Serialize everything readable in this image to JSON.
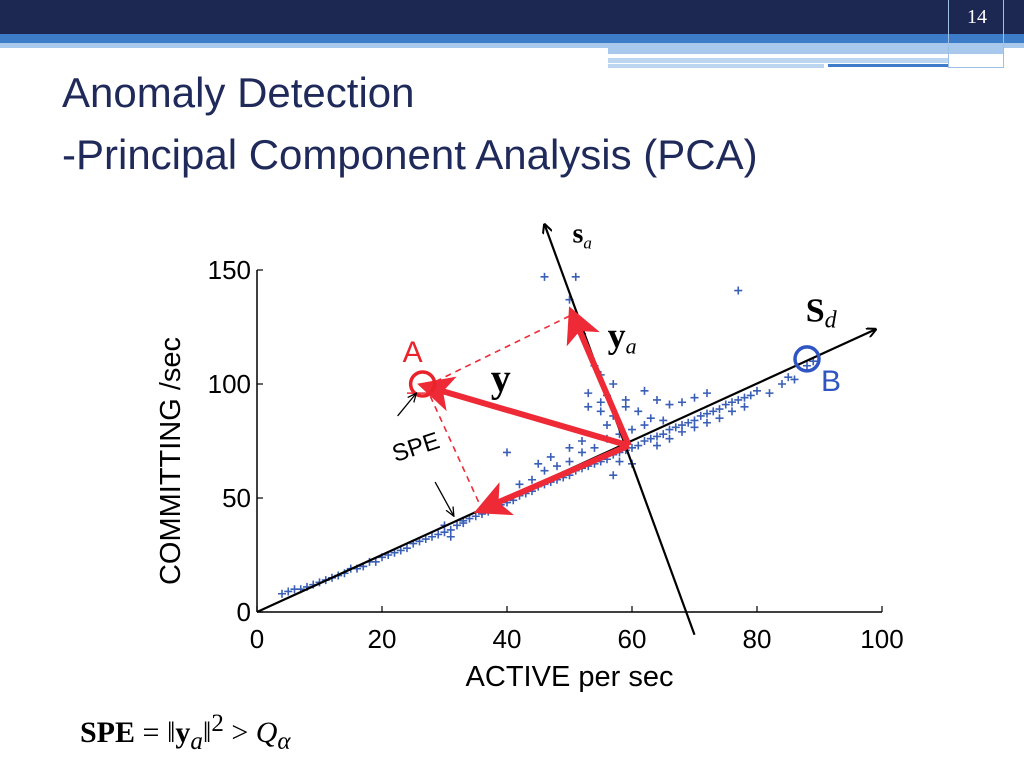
{
  "slide": {
    "number": "14",
    "title_line1": "Anomaly Detection",
    "title_line2": "-Principal Component Analysis (PCA)",
    "formula_lhs": "SPE",
    "formula_eq": " = ‖",
    "formula_y": "y",
    "formula_sub_a": "a",
    "formula_rhs": "‖",
    "formula_exp": "2",
    "formula_gt": " > ",
    "formula_q": "Q",
    "formula_sub_alpha": "α"
  },
  "chart_data": {
    "type": "scatter",
    "xlabel": "ACTIVE per sec",
    "ylabel": "COMMITTING /sec",
    "xlim": [
      0,
      100
    ],
    "ylim": [
      0,
      150
    ],
    "xticks": [
      0,
      20,
      40,
      60,
      80,
      100
    ],
    "yticks": [
      0,
      50,
      100,
      150
    ],
    "x_tick_labels": [
      "0",
      "20",
      "40",
      "60",
      "80",
      "100"
    ],
    "y_tick_labels": [
      "0",
      "50",
      "100",
      "150"
    ],
    "grid": false,
    "points": [
      [
        4,
        8
      ],
      [
        5,
        9
      ],
      [
        6,
        10
      ],
      [
        7,
        10
      ],
      [
        8,
        11
      ],
      [
        9,
        12
      ],
      [
        10,
        13
      ],
      [
        11,
        14
      ],
      [
        12,
        15
      ],
      [
        13,
        16
      ],
      [
        14,
        17
      ],
      [
        15,
        19
      ],
      [
        16,
        19
      ],
      [
        17,
        20
      ],
      [
        18,
        22
      ],
      [
        19,
        22
      ],
      [
        20,
        24
      ],
      [
        21,
        25
      ],
      [
        22,
        26
      ],
      [
        23,
        27
      ],
      [
        24,
        28
      ],
      [
        25,
        30
      ],
      [
        26,
        31
      ],
      [
        27,
        32
      ],
      [
        28,
        33
      ],
      [
        29,
        34
      ],
      [
        30,
        35
      ],
      [
        31,
        36
      ],
      [
        32,
        38
      ],
      [
        33,
        39
      ],
      [
        34,
        41
      ],
      [
        35,
        42
      ],
      [
        36,
        43
      ],
      [
        37,
        44
      ],
      [
        38,
        46
      ],
      [
        39,
        47
      ],
      [
        40,
        48
      ],
      [
        41,
        49
      ],
      [
        42,
        51
      ],
      [
        43,
        52
      ],
      [
        44,
        53
      ],
      [
        45,
        55
      ],
      [
        46,
        56
      ],
      [
        47,
        57
      ],
      [
        48,
        58
      ],
      [
        49,
        59
      ],
      [
        50,
        60
      ],
      [
        51,
        62
      ],
      [
        52,
        63
      ],
      [
        53,
        64
      ],
      [
        54,
        65
      ],
      [
        55,
        66
      ],
      [
        56,
        67
      ],
      [
        57,
        69
      ],
      [
        58,
        70
      ],
      [
        59,
        71
      ],
      [
        60,
        72
      ],
      [
        61,
        73
      ],
      [
        62,
        75
      ],
      [
        63,
        76
      ],
      [
        64,
        77
      ],
      [
        65,
        78
      ],
      [
        66,
        80
      ],
      [
        67,
        81
      ],
      [
        68,
        82
      ],
      [
        69,
        83
      ],
      [
        70,
        84
      ],
      [
        71,
        86
      ],
      [
        72,
        87
      ],
      [
        73,
        88
      ],
      [
        74,
        89
      ],
      [
        75,
        91
      ],
      [
        76,
        92
      ],
      [
        77,
        93
      ],
      [
        78,
        94
      ],
      [
        79,
        95
      ],
      [
        80,
        97
      ],
      [
        44,
        58
      ],
      [
        46,
        62
      ],
      [
        48,
        64
      ],
      [
        50,
        66
      ],
      [
        52,
        70
      ],
      [
        54,
        72
      ],
      [
        56,
        76
      ],
      [
        58,
        78
      ],
      [
        60,
        80
      ],
      [
        62,
        82
      ],
      [
        55,
        88
      ],
      [
        57,
        86
      ],
      [
        53,
        90
      ],
      [
        59,
        90
      ],
      [
        61,
        88
      ],
      [
        63,
        85
      ],
      [
        65,
        84
      ],
      [
        50,
        72
      ],
      [
        52,
        75
      ],
      [
        47,
        68
      ],
      [
        45,
        65
      ],
      [
        56,
        82
      ],
      [
        40,
        70
      ],
      [
        42,
        56
      ],
      [
        36,
        44
      ],
      [
        33,
        40
      ],
      [
        31,
        33
      ],
      [
        30,
        38
      ],
      [
        57,
        60
      ],
      [
        58,
        66
      ],
      [
        60,
        65
      ],
      [
        64,
        73
      ],
      [
        66,
        76
      ],
      [
        68,
        79
      ],
      [
        70,
        81
      ],
      [
        72,
        83
      ],
      [
        74,
        85
      ],
      [
        76,
        88
      ],
      [
        78,
        90
      ],
      [
        82,
        96
      ],
      [
        84,
        100
      ],
      [
        86,
        102
      ],
      [
        88,
        108
      ],
      [
        89,
        110
      ],
      [
        85,
        103
      ],
      [
        46,
        147
      ],
      [
        51,
        147
      ],
      [
        77,
        141
      ],
      [
        50,
        137
      ],
      [
        52,
        122
      ],
      [
        54,
        108
      ],
      [
        55,
        104
      ],
      [
        57,
        100
      ],
      [
        53,
        96
      ],
      [
        55,
        92
      ],
      [
        56,
        95
      ],
      [
        59,
        93
      ],
      [
        62,
        97
      ],
      [
        64,
        93
      ],
      [
        66,
        91
      ],
      [
        68,
        92
      ],
      [
        70,
        94
      ],
      [
        72,
        96
      ]
    ],
    "axes": {
      "s_a": {
        "label": "s",
        "sub": "a",
        "from": [
          70,
          -10
        ],
        "to": [
          46,
          170
        ]
      },
      "s_d": {
        "label": "S",
        "sub": "d",
        "from": [
          0,
          0
        ],
        "to": [
          99,
          124
        ]
      }
    },
    "center": [
      59.5,
      73
    ],
    "vectors": {
      "y": {
        "label": "y",
        "to": [
          27,
          99
        ]
      },
      "y_a": {
        "label": "y",
        "sub": "a",
        "to": [
          50.5,
          130.5
        ]
      },
      "projection": {
        "to": [
          36,
          45
        ]
      }
    },
    "points_labeled": {
      "A": {
        "label": "A",
        "x": 26.5,
        "y": 100,
        "color": "#e8232a"
      },
      "B": {
        "label": "B",
        "x": 88,
        "y": 111,
        "color": "#2f55c4"
      }
    },
    "spe_label": "SPE",
    "colors": {
      "points": "#3a5fb6",
      "vector": "#ee2a36",
      "axis": "#000000"
    }
  }
}
